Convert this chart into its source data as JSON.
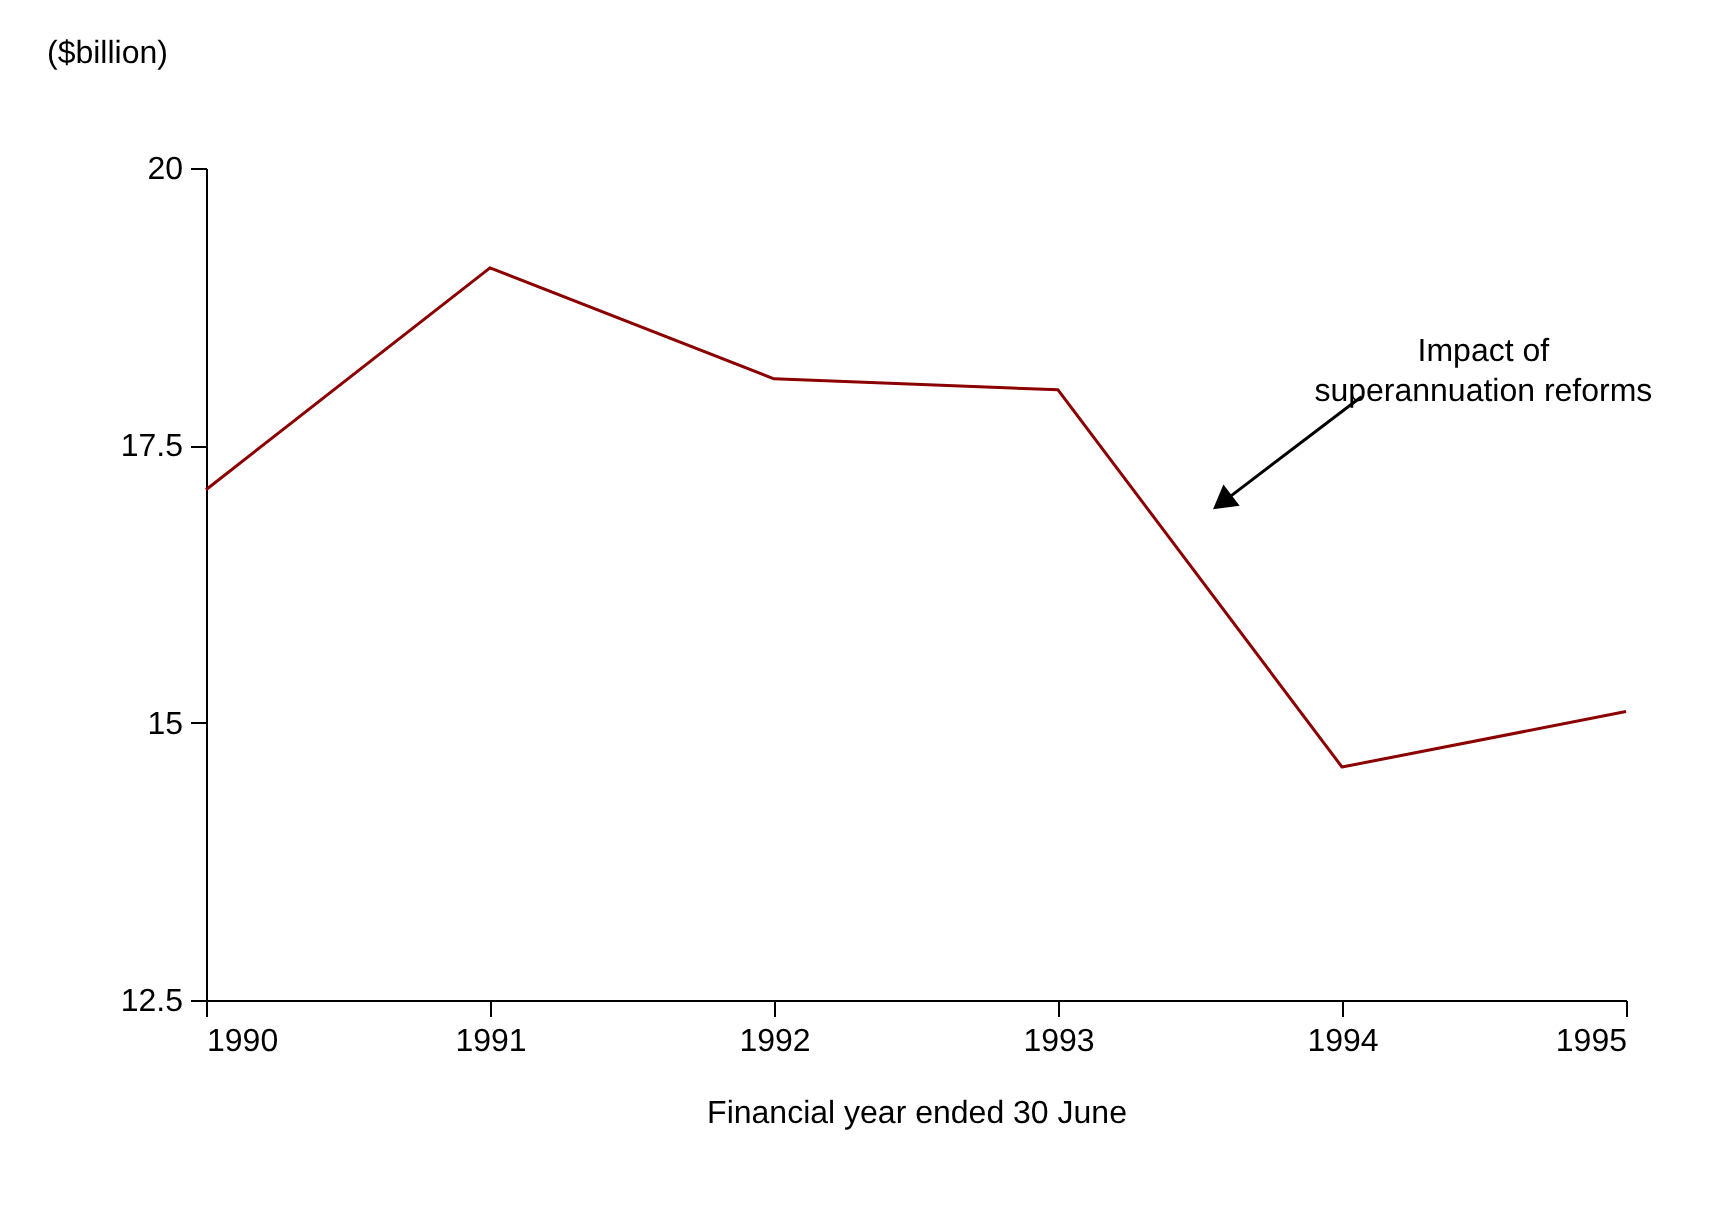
{
  "chart_data": {
    "type": "line",
    "xlabel": "Financial year ended 30 June",
    "ylabel": "($billion)",
    "x": [
      1990,
      1991,
      1992,
      1993,
      1994,
      1995
    ],
    "series": [
      {
        "color": "#8b0000",
        "values": [
          17.1,
          19.1,
          18.1,
          18.0,
          14.6,
          15.1
        ]
      }
    ],
    "xlim": [
      1990,
      1995
    ],
    "xticks": [
      1990,
      1991,
      1992,
      1993,
      1994,
      1995
    ],
    "ylim": [
      12.5,
      20
    ],
    "yticks": [
      12.5,
      15,
      17.5,
      20
    ],
    "grid": false,
    "marker": "none",
    "line_style": "solid",
    "annotations": [
      "Impact of\nsuperannuation reforms"
    ]
  }
}
